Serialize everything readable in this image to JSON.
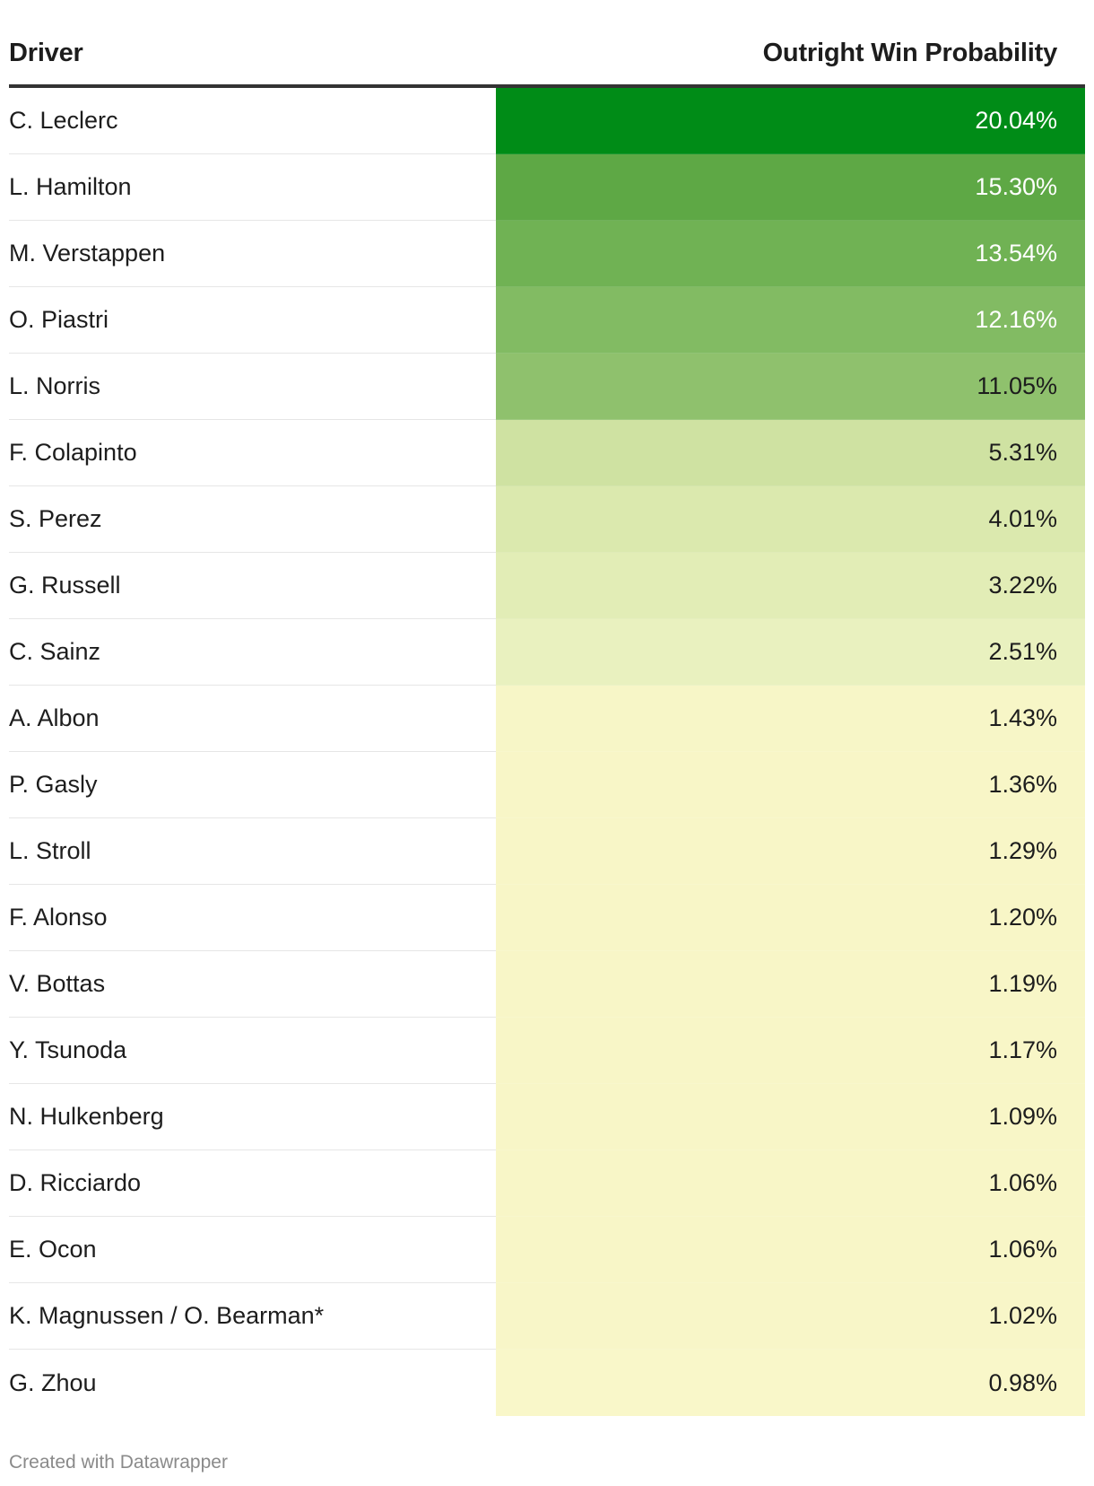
{
  "chart_data": {
    "type": "table",
    "columns": [
      "Driver",
      "Outright Win Probability"
    ],
    "rows": [
      {
        "driver": "C. Leclerc",
        "probability": "20.04%",
        "value": 20.04
      },
      {
        "driver": "L. Hamilton",
        "probability": "15.30%",
        "value": 15.3
      },
      {
        "driver": "M. Verstappen",
        "probability": "13.54%",
        "value": 13.54
      },
      {
        "driver": "O. Piastri",
        "probability": "12.16%",
        "value": 12.16
      },
      {
        "driver": "L. Norris",
        "probability": "11.05%",
        "value": 11.05
      },
      {
        "driver": "F. Colapinto",
        "probability": "5.31%",
        "value": 5.31
      },
      {
        "driver": "S. Perez",
        "probability": "4.01%",
        "value": 4.01
      },
      {
        "driver": "G. Russell",
        "probability": "3.22%",
        "value": 3.22
      },
      {
        "driver": "C. Sainz",
        "probability": "2.51%",
        "value": 2.51
      },
      {
        "driver": "A. Albon",
        "probability": "1.43%",
        "value": 1.43
      },
      {
        "driver": "P. Gasly",
        "probability": "1.36%",
        "value": 1.36
      },
      {
        "driver": "L. Stroll",
        "probability": "1.29%",
        "value": 1.29
      },
      {
        "driver": "F. Alonso",
        "probability": "1.20%",
        "value": 1.2
      },
      {
        "driver": "V. Bottas",
        "probability": "1.19%",
        "value": 1.19
      },
      {
        "driver": "Y. Tsunoda",
        "probability": "1.17%",
        "value": 1.17
      },
      {
        "driver": "N. Hulkenberg",
        "probability": "1.09%",
        "value": 1.09
      },
      {
        "driver": "D. Ricciardo",
        "probability": "1.06%",
        "value": 1.06
      },
      {
        "driver": "E. Ocon",
        "probability": "1.06%",
        "value": 1.06
      },
      {
        "driver": "K. Magnussen / O. Bearman*",
        "probability": "1.02%",
        "value": 1.02
      },
      {
        "driver": "G. Zhou",
        "probability": "0.98%",
        "value": 0.98
      }
    ],
    "cell_colors": [
      "#008c17",
      "#5ea845",
      "#70b254",
      "#82bb63",
      "#8fc16d",
      "#cfe2a2",
      "#dbe9ae",
      "#e2edb6",
      "#e9f1bf",
      "#f7f6c7",
      "#f8f6c7",
      "#f8f6c7",
      "#f8f6c7",
      "#f8f6c7",
      "#f8f6c7",
      "#f8f6c7",
      "#f8f6c7",
      "#f8f6c7",
      "#f8f6c8",
      "#f9f7c9"
    ],
    "text_colors": [
      "#ffffff",
      "#ffffff",
      "#ffffff",
      "#ffffff",
      "#1d1d1d",
      "#1d1d1d",
      "#1d1d1d",
      "#1d1d1d",
      "#1d1d1d",
      "#1d1d1d",
      "#1d1d1d",
      "#1d1d1d",
      "#1d1d1d",
      "#1d1d1d",
      "#1d1d1d",
      "#1d1d1d",
      "#1d1d1d",
      "#1d1d1d",
      "#1d1d1d",
      "#1d1d1d"
    ]
  },
  "footer": {
    "credit": "Created with Datawrapper"
  }
}
